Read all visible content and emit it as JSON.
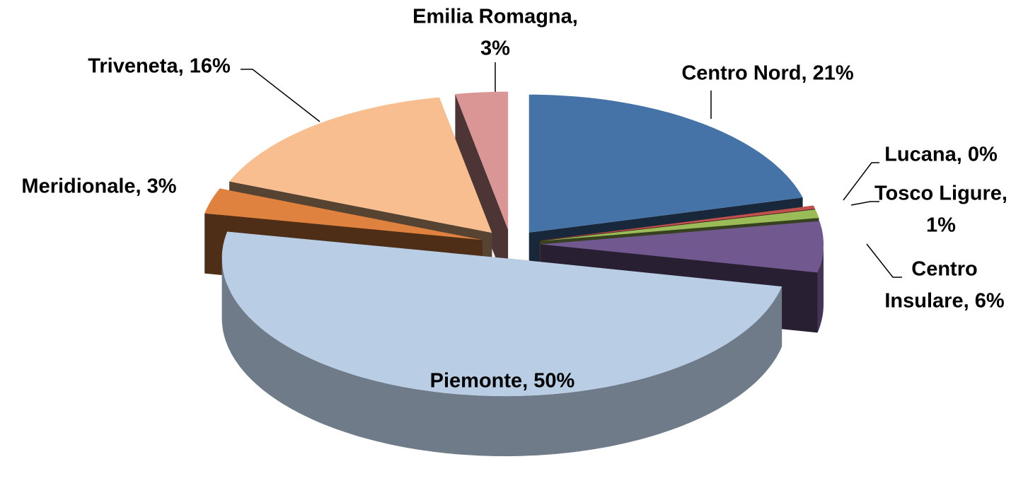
{
  "chart_data": {
    "type": "pie3d",
    "labels": [
      [
        "Centro Nord, 21%"
      ],
      [
        "Lucana, 0%"
      ],
      [
        "Tosco Ligure,",
        "1%"
      ],
      [
        "Centro",
        "Insulare, 6%"
      ],
      [
        "Piemonte, 50%"
      ],
      [
        "Meridionale, 3%"
      ],
      [
        "Triveneta, 16%"
      ],
      [
        "Emilia Romagna,",
        "3%"
      ]
    ],
    "values": [
      21,
      0.4,
      1,
      6,
      50,
      3,
      16,
      3
    ],
    "colors": [
      "#4572a7",
      "#c0504d",
      "#9bbb59",
      "#71588f",
      "#b9cde5",
      "#e0823f",
      "#f8be8f",
      "#d99694"
    ]
  }
}
